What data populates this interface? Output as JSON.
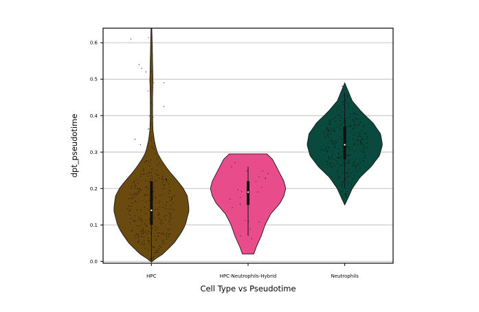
{
  "chart_data": {
    "type": "violin",
    "xlabel": "Cell Type vs Pseudotime",
    "ylabel": "dpt_pseudotime",
    "ylim": [
      -0.005,
      0.64
    ],
    "yticks": [
      "0.0",
      "0.1",
      "0.2",
      "0.3",
      "0.4",
      "0.5",
      "0.6"
    ],
    "grid": "horizontal",
    "categories": [
      "HPC",
      "HPC-Neutrophils-Hybrid",
      "Neutrophils"
    ],
    "colors": [
      "#6b4a10",
      "#e84c8a",
      "#0a4a3e"
    ],
    "series": [
      {
        "range": [
          -0.002,
          0.64
        ],
        "quartiles": [
          0.1,
          0.14,
          0.22
        ],
        "whisker": [
          0.0,
          0.22
        ],
        "profile": [
          [
            0.0,
            0.0
          ],
          [
            0.02,
            0.3
          ],
          [
            0.05,
            0.6
          ],
          [
            0.08,
            0.8
          ],
          [
            0.1,
            0.9
          ],
          [
            0.12,
            0.95
          ],
          [
            0.14,
            1.0
          ],
          [
            0.16,
            0.98
          ],
          [
            0.18,
            0.95
          ],
          [
            0.2,
            0.85
          ],
          [
            0.22,
            0.7
          ],
          [
            0.25,
            0.45
          ],
          [
            0.28,
            0.25
          ],
          [
            0.3,
            0.15
          ],
          [
            0.33,
            0.08
          ],
          [
            0.36,
            0.04
          ],
          [
            0.4,
            0.03
          ],
          [
            0.45,
            0.03
          ],
          [
            0.5,
            0.04
          ],
          [
            0.55,
            0.03
          ],
          [
            0.6,
            0.02
          ],
          [
            0.64,
            0.01
          ]
        ]
      },
      {
        "range": [
          0.02,
          0.295
        ],
        "quartiles": [
          0.155,
          0.19,
          0.22
        ],
        "whisker": [
          0.07,
          0.26
        ],
        "profile": [
          [
            0.02,
            0.15
          ],
          [
            0.04,
            0.22
          ],
          [
            0.07,
            0.35
          ],
          [
            0.1,
            0.45
          ],
          [
            0.13,
            0.6
          ],
          [
            0.16,
            0.85
          ],
          [
            0.18,
            0.95
          ],
          [
            0.2,
            1.0
          ],
          [
            0.22,
            0.95
          ],
          [
            0.24,
            0.85
          ],
          [
            0.26,
            0.75
          ],
          [
            0.28,
            0.65
          ],
          [
            0.295,
            0.5
          ]
        ]
      },
      {
        "range": [
          0.155,
          0.49
        ],
        "quartiles": [
          0.28,
          0.32,
          0.37
        ],
        "whisker": [
          0.2,
          0.46
        ],
        "profile": [
          [
            0.155,
            0.0
          ],
          [
            0.17,
            0.07
          ],
          [
            0.2,
            0.2
          ],
          [
            0.23,
            0.4
          ],
          [
            0.26,
            0.7
          ],
          [
            0.29,
            0.92
          ],
          [
            0.32,
            1.0
          ],
          [
            0.35,
            0.95
          ],
          [
            0.38,
            0.75
          ],
          [
            0.41,
            0.45
          ],
          [
            0.44,
            0.2
          ],
          [
            0.47,
            0.08
          ],
          [
            0.49,
            0.0
          ]
        ]
      }
    ]
  }
}
